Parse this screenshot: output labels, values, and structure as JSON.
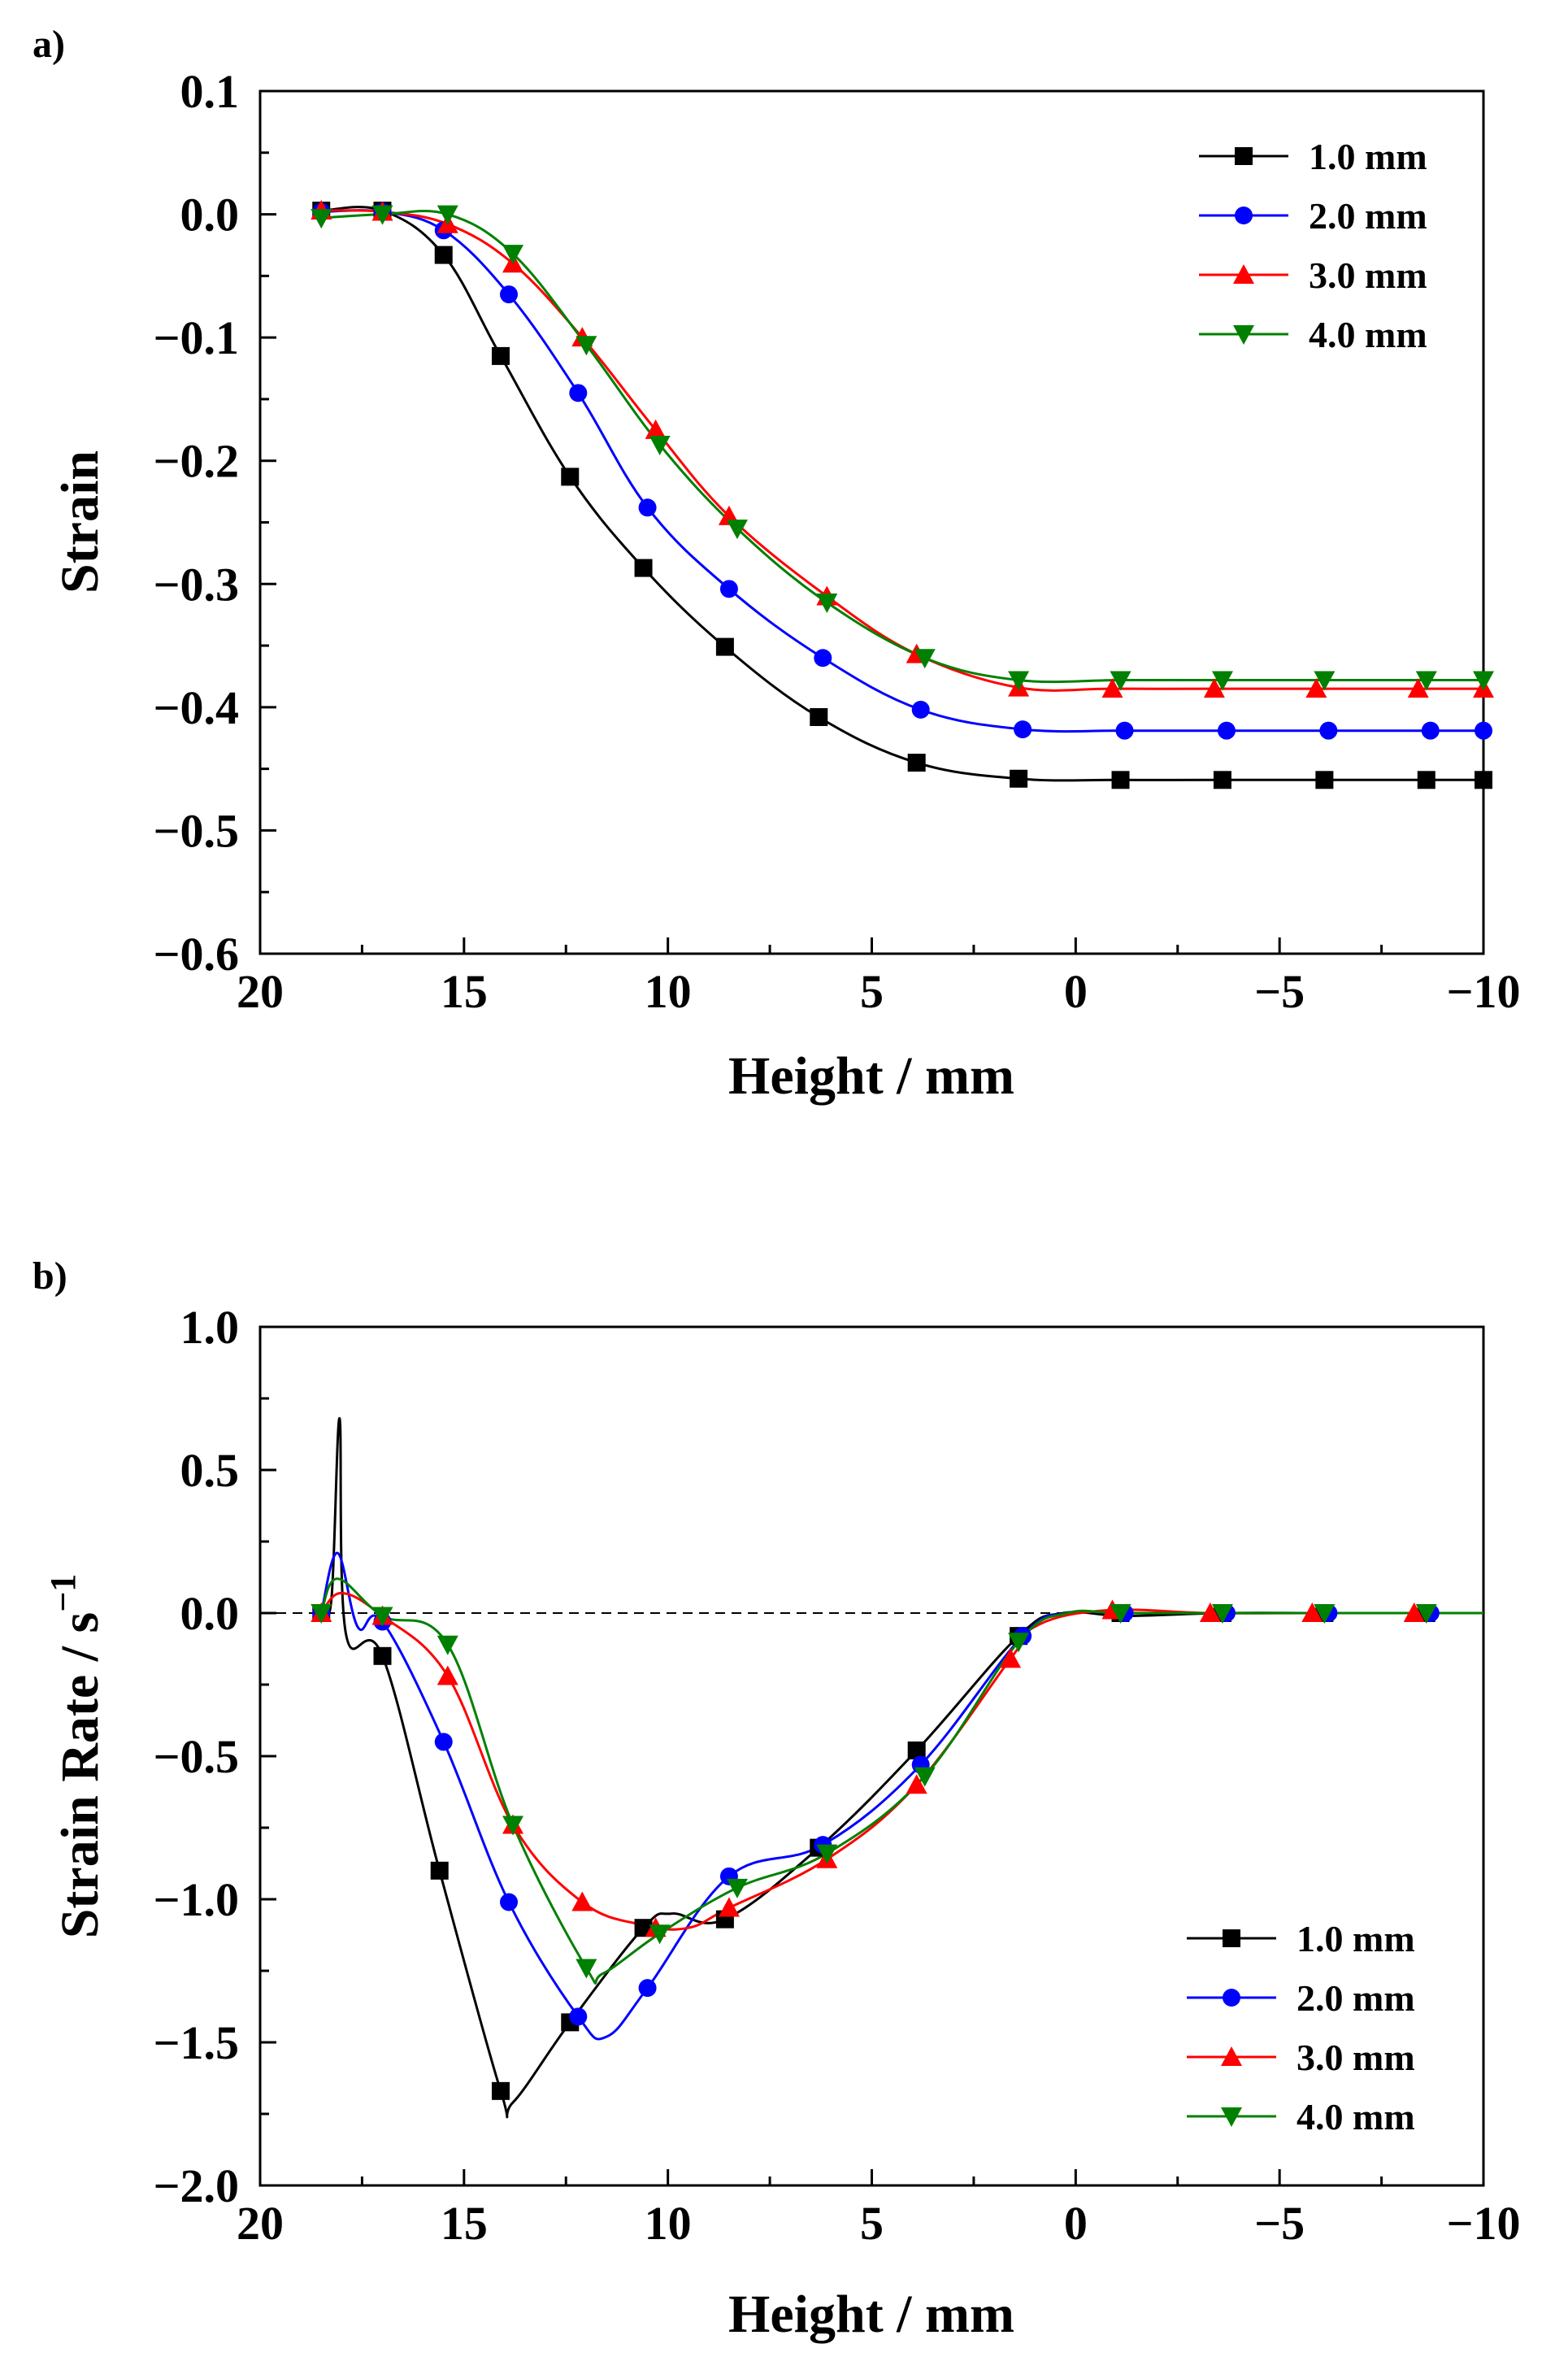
{
  "chart_data": [
    {
      "panel_label": "a)",
      "type": "line",
      "xlabel": "Height / mm",
      "ylabel": "Strain",
      "xlim": [
        20,
        -10
      ],
      "ylim": [
        -0.6,
        0.1
      ],
      "xticks": [
        20,
        15,
        10,
        5,
        0,
        -5,
        -10
      ],
      "xtick_labels": [
        "20",
        "15",
        "10",
        "5",
        "0",
        "−5",
        "−10"
      ],
      "yticks": [
        0.1,
        0.0,
        -0.1,
        -0.2,
        -0.3,
        -0.4,
        -0.5,
        -0.6
      ],
      "ytick_labels": [
        "0.1",
        "0.0",
        "−0.1",
        "−0.2",
        "−0.3",
        "−0.4",
        "−0.5",
        "−0.6"
      ],
      "legend_position": "top-right",
      "series": [
        {
          "name": "1.0 mm",
          "color": "#000000",
          "marker": "square",
          "x": [
            18.5,
            17.0,
            15.5,
            14.1,
            12.4,
            10.6,
            8.6,
            6.3,
            3.9,
            1.4,
            -1.1,
            -3.6,
            -6.1,
            -8.6,
            -10
          ],
          "y": [
            0.003,
            0.003,
            -0.033,
            -0.115,
            -0.213,
            -0.287,
            -0.351,
            -0.408,
            -0.445,
            -0.458,
            -0.459,
            -0.459,
            -0.459,
            -0.459,
            -0.459
          ]
        },
        {
          "name": "2.0 mm",
          "color": "#0000ff",
          "marker": "circle",
          "x": [
            18.5,
            17.0,
            15.5,
            13.9,
            12.2,
            10.5,
            8.5,
            6.2,
            3.8,
            1.3,
            -1.2,
            -3.7,
            -6.2,
            -8.7,
            -10
          ],
          "y": [
            0.002,
            0.002,
            -0.013,
            -0.065,
            -0.145,
            -0.238,
            -0.304,
            -0.36,
            -0.402,
            -0.418,
            -0.419,
            -0.419,
            -0.419,
            -0.419,
            -0.419
          ]
        },
        {
          "name": "3.0 mm",
          "color": "#ff0000",
          "marker": "triangle-up",
          "x": [
            18.5,
            17.0,
            15.4,
            13.8,
            12.1,
            10.3,
            8.5,
            6.1,
            3.9,
            1.4,
            -0.9,
            -3.4,
            -5.9,
            -8.4,
            -10
          ],
          "y": [
            0.003,
            0.002,
            -0.008,
            -0.04,
            -0.1,
            -0.175,
            -0.245,
            -0.31,
            -0.357,
            -0.384,
            -0.385,
            -0.385,
            -0.385,
            -0.385,
            -0.385
          ]
        },
        {
          "name": "4.0 mm",
          "color": "#008000",
          "marker": "triangle-down",
          "x": [
            18.5,
            17.0,
            15.4,
            13.8,
            12.0,
            10.2,
            8.3,
            6.1,
            3.7,
            1.4,
            -1.1,
            -3.6,
            -6.1,
            -8.6,
            -10
          ],
          "y": [
            -0.003,
            0.0,
            0.0,
            -0.032,
            -0.106,
            -0.187,
            -0.255,
            -0.315,
            -0.36,
            -0.378,
            -0.378,
            -0.378,
            -0.378,
            -0.378,
            -0.378
          ]
        }
      ]
    },
    {
      "panel_label": "b)",
      "type": "line",
      "xlabel": "Height / mm",
      "ylabel": "Strain Rate / s",
      "ylabel_superscript": "−1",
      "xlim": [
        20,
        -10
      ],
      "ylim": [
        -2.0,
        1.0
      ],
      "xticks": [
        20,
        15,
        10,
        5,
        0,
        -5,
        -10
      ],
      "xtick_labels": [
        "20",
        "15",
        "10",
        "5",
        "0",
        "−5",
        "−10"
      ],
      "yticks": [
        1.0,
        0.5,
        0.0,
        -0.5,
        -1.0,
        -1.5,
        -2.0
      ],
      "ytick_labels": [
        "1.0",
        "0.5",
        "0.0",
        "−0.5",
        "−1.0",
        "−1.5",
        "−2.0"
      ],
      "reference_line_y": 0.0,
      "legend_position": "bottom-right",
      "series": [
        {
          "name": "1.0 mm",
          "color": "#000000",
          "marker": "square",
          "x": [
            18.5,
            18.25,
            18.05,
            17.9,
            17.0,
            15.6,
            14.1,
            13.8,
            12.4,
            10.6,
            9.9,
            8.6,
            6.3,
            3.9,
            1.4,
            0.3,
            -1.2,
            -3.6,
            -6.1,
            -8.6,
            -10
          ],
          "y": [
            0.0,
            0.05,
            0.68,
            -0.07,
            -0.15,
            -0.9,
            -1.67,
            -1.71,
            -1.43,
            -1.1,
            -1.05,
            -1.07,
            -0.82,
            -0.48,
            -0.08,
            0.0,
            -0.01,
            0.0,
            0.0,
            0.0,
            0.0
          ],
          "markers_x": [
            18.5,
            17.0,
            15.6,
            14.1,
            12.4,
            10.6,
            8.6,
            6.3,
            3.9,
            1.4,
            -1.1,
            -3.6,
            -6.1,
            -8.6
          ],
          "markers_y": [
            0.0,
            -0.15,
            -0.9,
            -1.67,
            -1.43,
            -1.1,
            -1.07,
            -0.82,
            -0.48,
            -0.08,
            0.0,
            0.0,
            0.0,
            0.0
          ]
        },
        {
          "name": "2.0 mm",
          "color": "#0000ff",
          "marker": "circle",
          "x": [
            18.5,
            18.1,
            17.6,
            17.0,
            15.5,
            13.9,
            12.2,
            11.5,
            10.5,
            8.5,
            6.2,
            3.8,
            1.3,
            0.2,
            -1.2,
            -3.7,
            -6.2,
            -8.7,
            -10
          ],
          "y": [
            0.0,
            0.21,
            -0.05,
            -0.03,
            -0.45,
            -1.01,
            -1.41,
            -1.48,
            -1.31,
            -0.92,
            -0.81,
            -0.53,
            -0.08,
            0.0,
            0.0,
            0.0,
            0.0,
            0.0,
            0.0
          ],
          "markers_x": [
            18.5,
            17.0,
            15.5,
            13.9,
            12.2,
            10.5,
            8.5,
            6.2,
            3.8,
            1.3,
            -1.2,
            -3.7,
            -6.2,
            -8.7
          ],
          "markers_y": [
            0.0,
            -0.03,
            -0.45,
            -1.01,
            -1.41,
            -1.31,
            -0.92,
            -0.81,
            -0.53,
            -0.08,
            0.0,
            0.0,
            0.0,
            0.0
          ]
        },
        {
          "name": "3.0 mm",
          "color": "#ff0000",
          "marker": "triangle-up",
          "x": [
            18.5,
            18.0,
            17.0,
            15.4,
            13.8,
            12.1,
            10.6,
            9.5,
            8.5,
            6.1,
            3.9,
            1.6,
            0.9,
            -0.8,
            -3.3,
            -5.8,
            -8.3,
            -10
          ],
          "y": [
            0.0,
            0.07,
            -0.01,
            -0.22,
            -0.74,
            -1.01,
            -1.09,
            -1.1,
            -1.03,
            -0.86,
            -0.6,
            -0.16,
            -0.04,
            0.01,
            0.0,
            0.0,
            0.0,
            0.0
          ],
          "markers_x": [
            18.5,
            17.0,
            15.4,
            13.8,
            12.1,
            10.3,
            8.5,
            6.1,
            3.9,
            1.6,
            -0.9,
            -3.3,
            -5.8,
            -8.3
          ],
          "markers_y": [
            0.0,
            -0.01,
            -0.22,
            -0.74,
            -1.01,
            -1.1,
            -1.03,
            -0.86,
            -0.6,
            -0.16,
            0.01,
            0.0,
            0.0,
            0.0
          ]
        },
        {
          "name": "4.0 mm",
          "color": "#008000",
          "marker": "triangle-down",
          "x": [
            18.5,
            18.1,
            17.0,
            15.4,
            13.8,
            12.0,
            11.6,
            10.2,
            8.3,
            6.1,
            3.7,
            1.4,
            0.2,
            -1.1,
            -3.6,
            -6.1,
            -8.6,
            -10
          ],
          "y": [
            0.0,
            0.12,
            -0.01,
            -0.11,
            -0.74,
            -1.24,
            -1.26,
            -1.12,
            -0.96,
            -0.84,
            -0.57,
            -0.1,
            0.0,
            0.0,
            0.0,
            0.0,
            0.0,
            0.0
          ],
          "markers_x": [
            18.5,
            17.0,
            15.4,
            13.8,
            12.0,
            10.2,
            8.3,
            6.1,
            3.7,
            1.4,
            -1.1,
            -3.6,
            -6.1,
            -8.6
          ],
          "markers_y": [
            0.0,
            -0.01,
            -0.11,
            -0.74,
            -1.24,
            -1.12,
            -0.96,
            -0.84,
            -0.57,
            -0.1,
            0.0,
            0.0,
            0.0,
            0.0
          ]
        }
      ]
    }
  ]
}
